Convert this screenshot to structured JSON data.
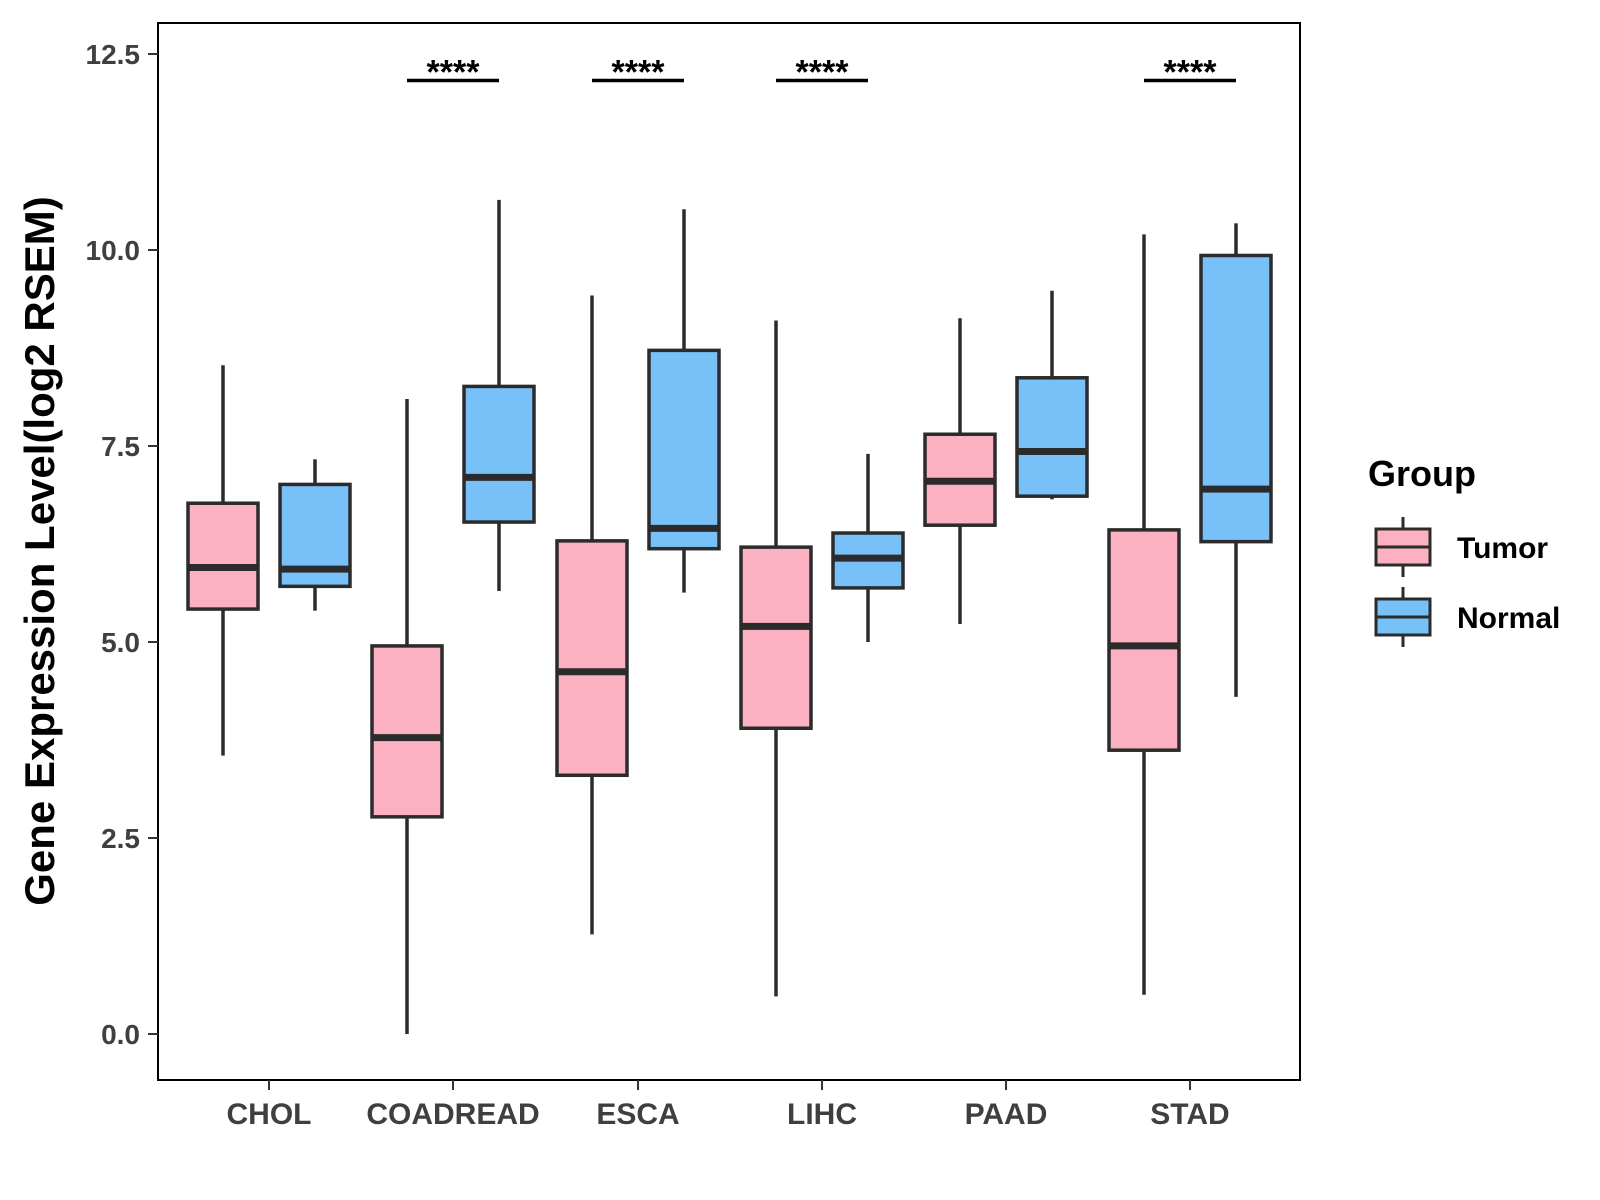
{
  "chart_data": {
    "type": "boxplot",
    "title": "",
    "xlabel": "",
    "ylabel": "Gene Expression Level(log2 RSEM)",
    "ylim": [
      -0.6,
      12.9
    ],
    "yticks": [
      0.0,
      2.5,
      5.0,
      7.5,
      10.0,
      12.5
    ],
    "ytick_labels": [
      "0.0",
      "2.5",
      "5.0",
      "7.5",
      "10.0",
      "12.5"
    ],
    "grid": false,
    "legend": {
      "title": "Group",
      "position": "right"
    },
    "categories": [
      "CHOL",
      "COADREAD",
      "ESCA",
      "LIHC",
      "PAAD",
      "STAD"
    ],
    "series": [
      {
        "name": "Tumor",
        "color": "#fbb1c1",
        "boxes": [
          {
            "min": 3.55,
            "q1": 5.42,
            "median": 5.95,
            "q3": 6.77,
            "max": 8.53
          },
          {
            "min": 0.0,
            "q1": 2.77,
            "median": 3.78,
            "q3": 4.95,
            "max": 8.1
          },
          {
            "min": 1.27,
            "q1": 3.3,
            "median": 4.62,
            "q3": 6.29,
            "max": 9.42
          },
          {
            "min": 0.48,
            "q1": 3.9,
            "median": 5.2,
            "q3": 6.21,
            "max": 9.1
          },
          {
            "min": 5.23,
            "q1": 6.49,
            "median": 7.05,
            "q3": 7.65,
            "max": 9.13
          },
          {
            "min": 0.5,
            "q1": 3.62,
            "median": 4.95,
            "q3": 6.43,
            "max": 10.2
          }
        ]
      },
      {
        "name": "Normal",
        "color": "#77c1f8",
        "boxes": [
          {
            "min": 5.4,
            "q1": 5.71,
            "median": 5.93,
            "q3": 7.01,
            "max": 7.33
          },
          {
            "min": 5.65,
            "q1": 6.53,
            "median": 7.1,
            "q3": 8.26,
            "max": 10.64
          },
          {
            "min": 5.63,
            "q1": 6.19,
            "median": 6.45,
            "q3": 8.72,
            "max": 10.52
          },
          {
            "min": 5.0,
            "q1": 5.69,
            "median": 6.07,
            "q3": 6.39,
            "max": 7.4
          },
          {
            "min": 6.82,
            "q1": 6.86,
            "median": 7.43,
            "q3": 8.37,
            "max": 9.48
          },
          {
            "min": 4.3,
            "q1": 6.28,
            "median": 6.95,
            "q3": 9.93,
            "max": 10.34
          }
        ]
      }
    ],
    "annotations": [
      {
        "category": "CHOL",
        "label": ""
      },
      {
        "category": "COADREAD",
        "label": "****",
        "y": 12.2
      },
      {
        "category": "ESCA",
        "label": "****",
        "y": 12.2
      },
      {
        "category": "LIHC",
        "label": "****",
        "y": 12.2
      },
      {
        "category": "PAAD",
        "label": ""
      },
      {
        "category": "STAD",
        "label": "****",
        "y": 12.2
      }
    ]
  }
}
